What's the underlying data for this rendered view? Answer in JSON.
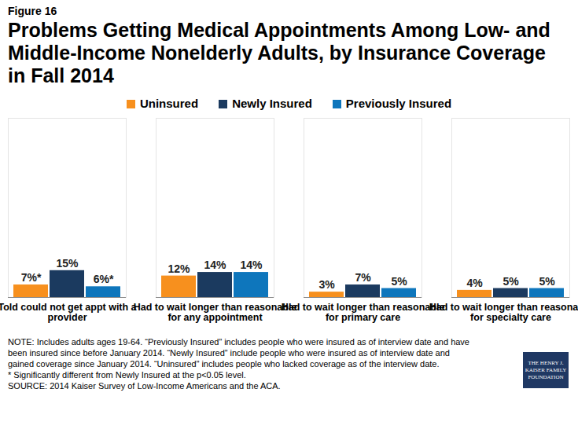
{
  "chart_data": {
    "type": "bar",
    "figure_label": "Figure 16",
    "title": "Problems Getting Medical Appointments Among Low- and Middle-Income Nonelderly Adults, by Insurance Coverage in Fall 2014",
    "categories": [
      "Told could not get appt with a provider",
      "Had to wait longer than reasonable for any appointment",
      "Had to wait longer than reasonable for primary care",
      "Had to wait longer than reasonable for specialty care"
    ],
    "series": [
      {
        "name": "Uninsured",
        "color": "#f7901e",
        "values": [
          7,
          12,
          3,
          4
        ],
        "value_labels": [
          "7%*",
          "12%",
          "3%",
          "4%"
        ]
      },
      {
        "name": "Newly Insured",
        "color": "#1b3a5f",
        "values": [
          15,
          14,
          7,
          5
        ],
        "value_labels": [
          "15%",
          "14%",
          "7%",
          "5%"
        ]
      },
      {
        "name": "Previously Insured",
        "color": "#0e76bc",
        "values": [
          6,
          14,
          5,
          5
        ],
        "value_labels": [
          "6%*",
          "14%",
          "5%",
          "5%"
        ]
      }
    ],
    "ylim": [
      0,
      100
    ],
    "data_labels": true,
    "tick_labels": "x",
    "grid": false,
    "legend": "top",
    "notes": [
      "NOTE: Includes adults ages 19-64. “Previously Insured” includes people who were insured as of interview date and have been insured since before January 2014. “Newly Insured” include people who were insured as of interview date and gained coverage since January 2014. “Uninsured” includes people who lacked coverage as of the interview date.",
      "* Significantly different from Newly Insured at the p<0.05 level.",
      "SOURCE: 2014 Kaiser Survey of Low-Income Americans and the ACA."
    ],
    "logo": "THE HENRY J. KAISER FAMILY FOUNDATION"
  }
}
